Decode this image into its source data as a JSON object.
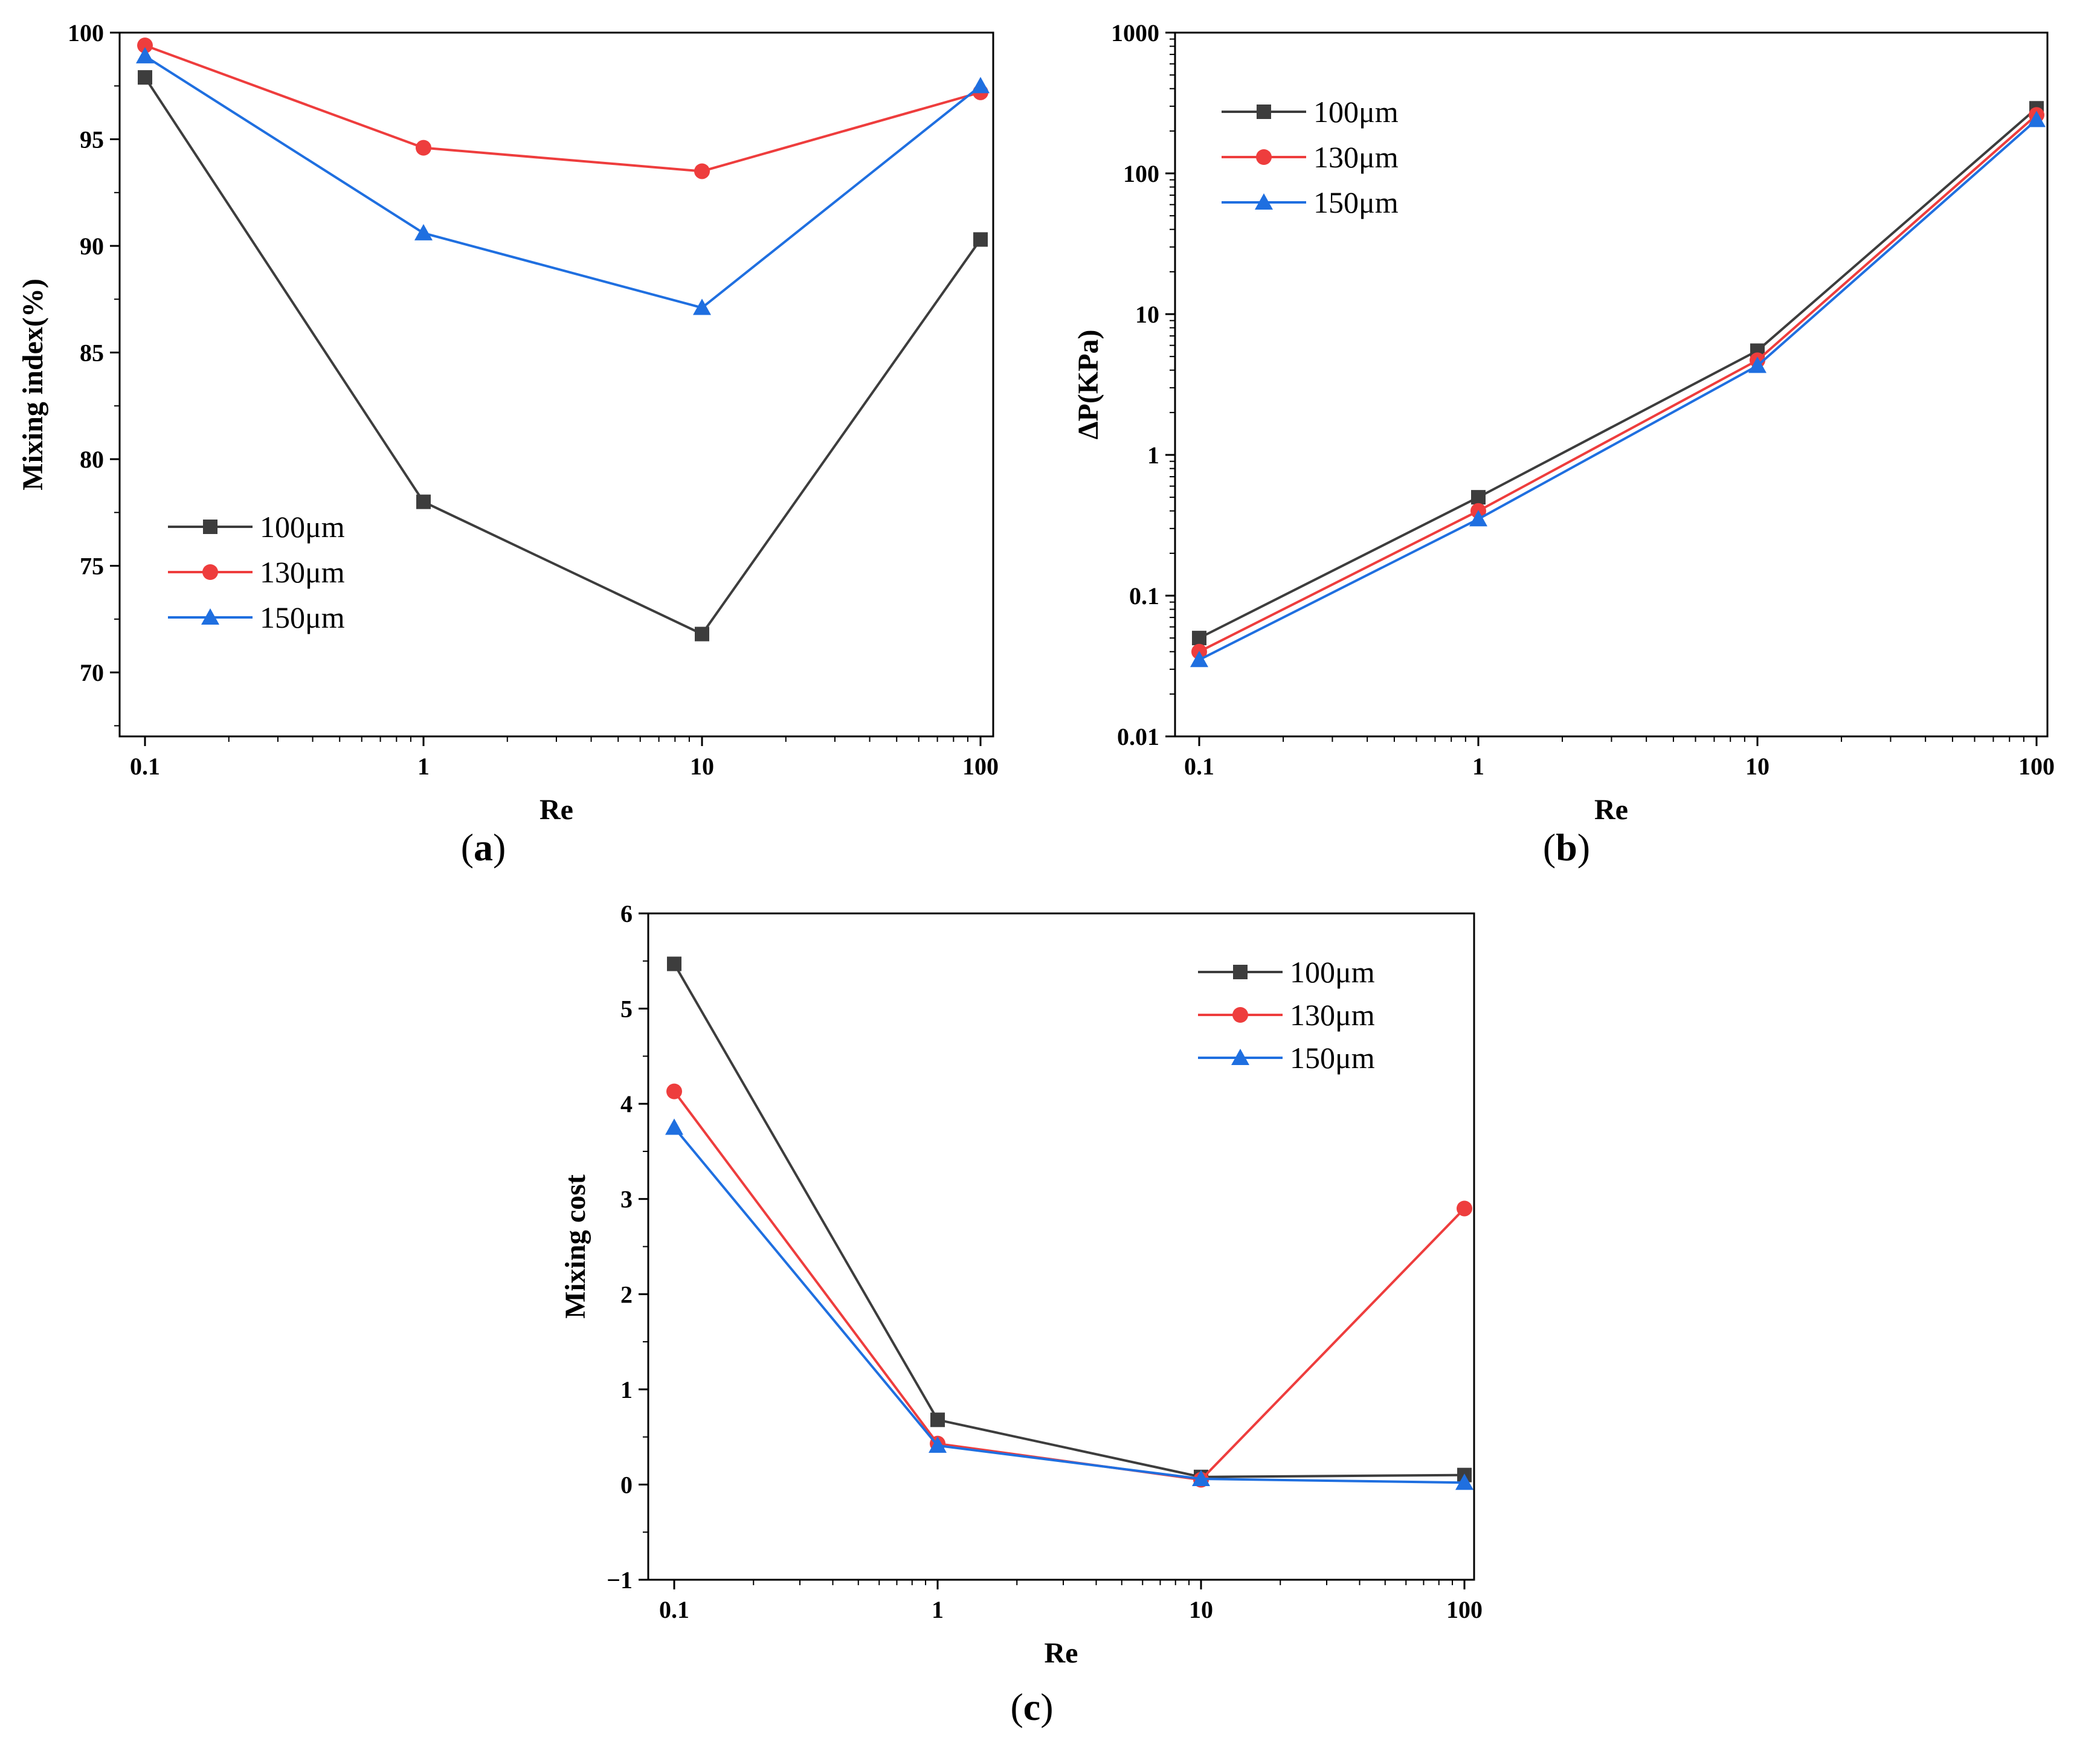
{
  "colors": {
    "100um": "#3d3d3d",
    "130um": "#ee3d3d",
    "150um": "#1f6fe0",
    "axis": "#000000"
  },
  "chart_data": [
    {
      "id": "a",
      "type": "line",
      "panel_label": {
        "open": "(",
        "letter": "a",
        "close": ")"
      },
      "xscale": "log",
      "yscale": "linear",
      "x": [
        0.1,
        1,
        10,
        100
      ],
      "xticks": [
        "0.1",
        "1",
        "10",
        "100"
      ],
      "xlabel": "Re",
      "ylabel": "Mixing index(%)",
      "ylim": [
        67,
        100
      ],
      "yticks": [
        "70",
        "75",
        "80",
        "85",
        "90",
        "95",
        "100"
      ],
      "legend_position": "lower-left",
      "series": [
        {
          "name": "100μm",
          "marker": "square",
          "values": [
            97.9,
            78.0,
            71.8,
            90.3
          ]
        },
        {
          "name": "130μm",
          "marker": "circle",
          "values": [
            99.4,
            94.6,
            93.5,
            97.2
          ]
        },
        {
          "name": "150μm",
          "marker": "triangle",
          "values": [
            98.9,
            90.6,
            87.1,
            97.5
          ]
        }
      ]
    },
    {
      "id": "b",
      "type": "line",
      "panel_label": {
        "open": "(",
        "letter": "b",
        "close": ")"
      },
      "xscale": "log",
      "yscale": "log",
      "x": [
        0.1,
        1,
        10,
        100
      ],
      "xticks": [
        "0.1",
        "1",
        "10",
        "100"
      ],
      "xlabel": "Re",
      "ylabel": "ΔP(KPa)",
      "ylim": [
        0.01,
        1000
      ],
      "yticks": [
        "0.01",
        "0.1",
        "1",
        "10",
        "100",
        "1000"
      ],
      "legend_position": "top-left",
      "series": [
        {
          "name": "100μm",
          "marker": "square",
          "values": [
            0.05,
            0.5,
            5.5,
            290
          ]
        },
        {
          "name": "130μm",
          "marker": "circle",
          "values": [
            0.04,
            0.4,
            4.7,
            260
          ]
        },
        {
          "name": "150μm",
          "marker": "triangle",
          "values": [
            0.035,
            0.35,
            4.3,
            240
          ]
        }
      ]
    },
    {
      "id": "c",
      "type": "line",
      "panel_label": {
        "open": "(",
        "letter": "c",
        "close": ")"
      },
      "xscale": "log",
      "yscale": "linear",
      "x": [
        0.1,
        1,
        10,
        100
      ],
      "xticks": [
        "0.1",
        "1",
        "10",
        "100"
      ],
      "xlabel": "Re",
      "ylabel": "Mixing cost",
      "ylim": [
        -1,
        6
      ],
      "yticks": [
        "−1",
        "0",
        "1",
        "2",
        "3",
        "4",
        "5",
        "6"
      ],
      "legend_position": "top-right",
      "series": [
        {
          "name": "100μm",
          "marker": "square",
          "values": [
            5.47,
            0.68,
            0.08,
            0.1
          ]
        },
        {
          "name": "130μm",
          "marker": "circle",
          "values": [
            4.13,
            0.43,
            0.05,
            2.9
          ]
        },
        {
          "name": "150μm",
          "marker": "triangle",
          "values": [
            3.75,
            0.41,
            0.06,
            0.02
          ]
        }
      ]
    }
  ]
}
